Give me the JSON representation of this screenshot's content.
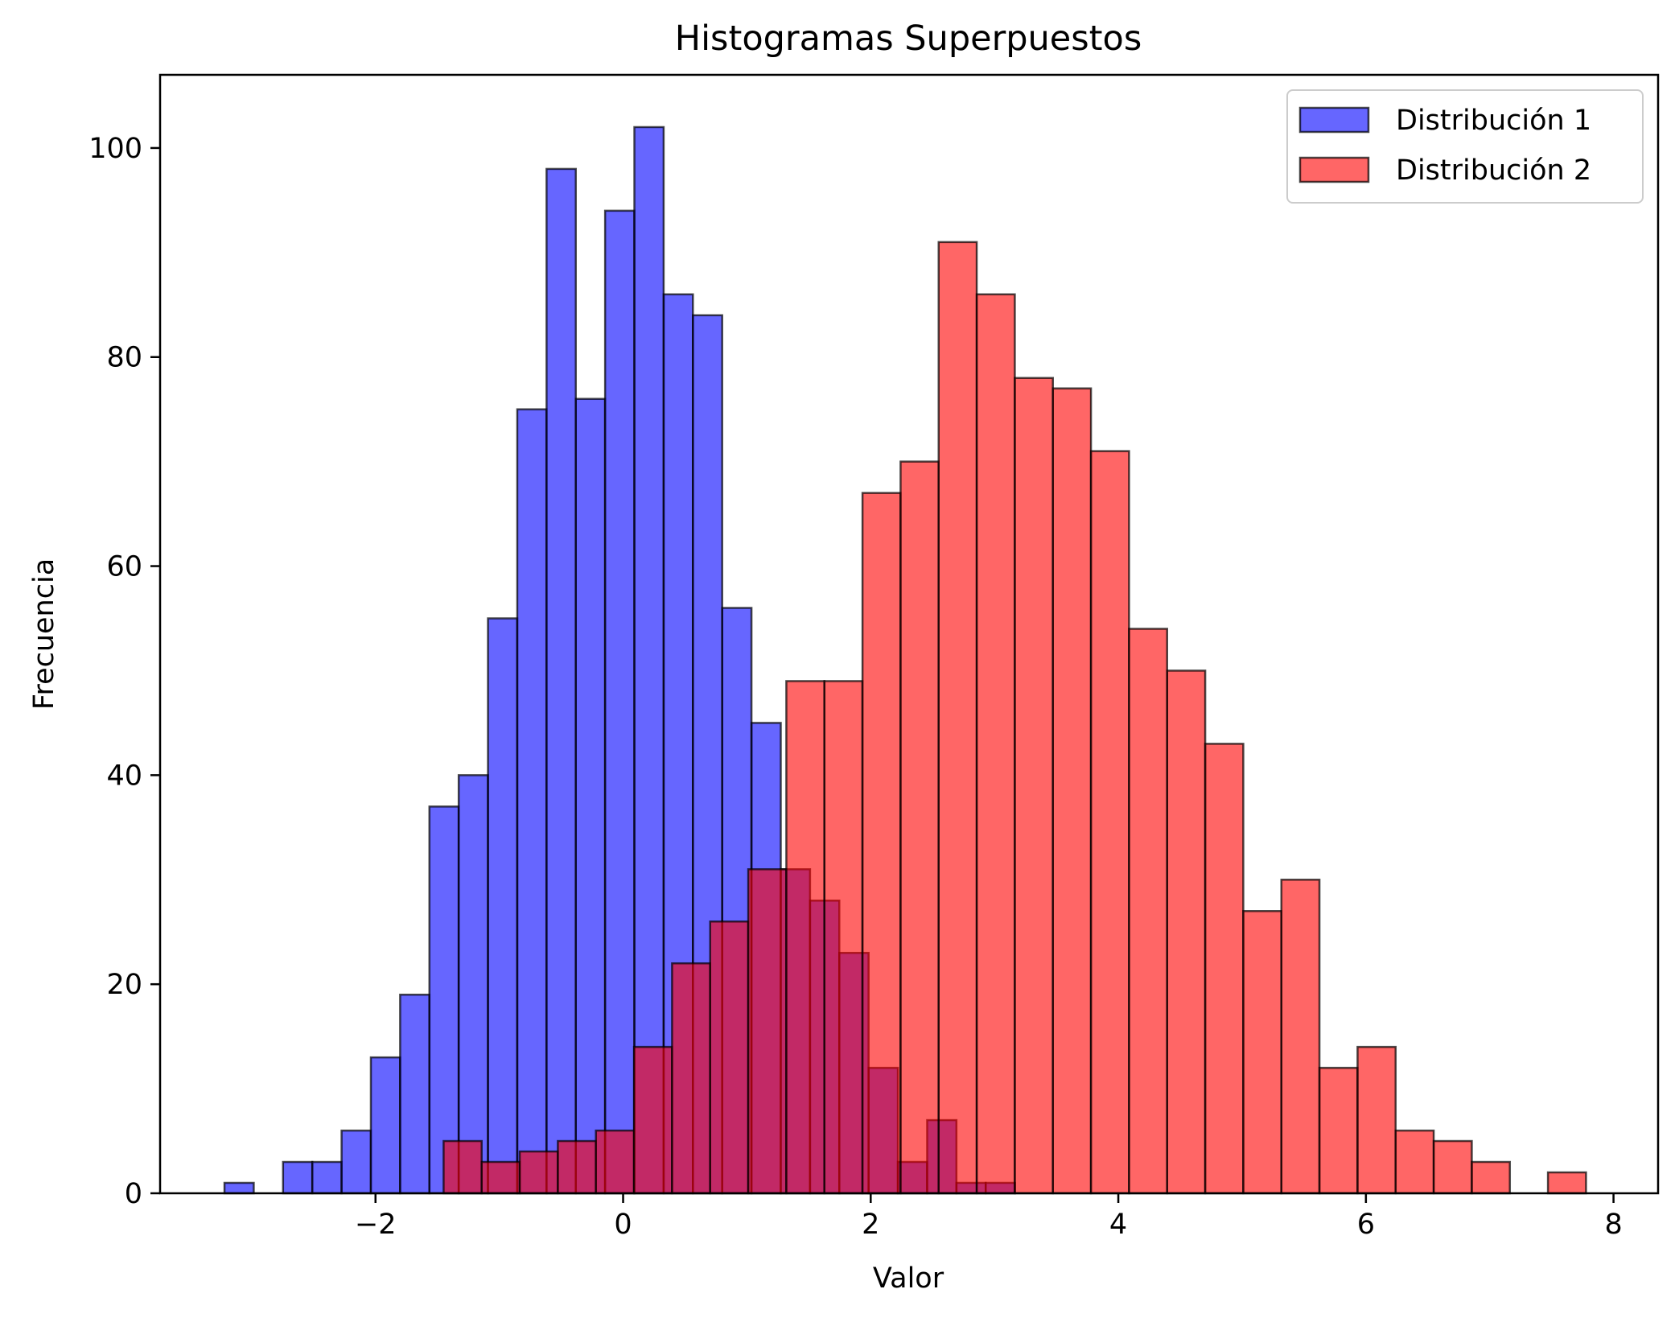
{
  "chart_data": {
    "type": "bar",
    "title": "Histogramas Superpuestos",
    "xlabel": "Valor",
    "ylabel": "Frecuencia",
    "xlim": [
      -3.74,
      8.36
    ],
    "ylim": [
      0,
      107
    ],
    "xticks": [
      -2,
      0,
      2,
      4,
      6,
      8
    ],
    "xtick_labels": [
      "−2",
      "0",
      "2",
      "4",
      "6",
      "8"
    ],
    "yticks": [
      0,
      20,
      40,
      60,
      80,
      100
    ],
    "ytick_labels": [
      "0",
      "20",
      "40",
      "60",
      "80",
      "100"
    ],
    "grid": false,
    "legend_position": "top-right",
    "series": [
      {
        "name": "Distribución 1",
        "color": "#0000ff",
        "alpha": 0.6,
        "bin_start": -3.22,
        "bin_width": 0.2365,
        "values": [
          1,
          0,
          3,
          3,
          6,
          13,
          19,
          37,
          40,
          55,
          75,
          98,
          76,
          94,
          102,
          86,
          84,
          56,
          45,
          31,
          28,
          23,
          12,
          3,
          7,
          1,
          1,
          0,
          0,
          0
        ]
      },
      {
        "name": "Distribución 2",
        "color": "#ff0000",
        "alpha": 0.6,
        "bin_start": -1.45,
        "bin_width": 0.3076,
        "values": [
          5,
          3,
          4,
          5,
          6,
          14,
          22,
          26,
          31,
          49,
          49,
          67,
          70,
          91,
          86,
          78,
          77,
          71,
          54,
          50,
          43,
          27,
          30,
          12,
          14,
          6,
          5,
          3,
          0,
          2
        ]
      }
    ]
  }
}
